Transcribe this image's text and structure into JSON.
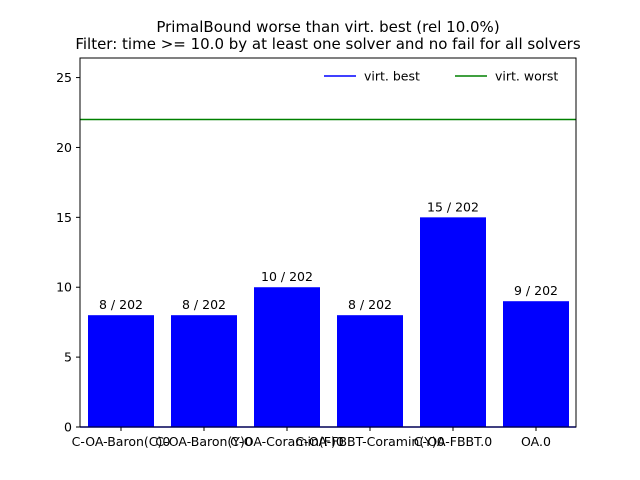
{
  "chart_data": {
    "type": "bar",
    "title": "PrimalBound worse than virt. best (rel 10.0%)",
    "subtitle": "Filter: time >= 10.0 by at least one solver and no fail for all solvers",
    "categories": [
      "C-OA-Baron(C)0",
      "C-OA-Baron(Y)0",
      "C-OA-Coramin(F)0",
      "C-OA-FBBT-Coramin(Y)0",
      "C-OA-FBBT.0",
      "OA.0"
    ],
    "values": [
      8,
      8,
      10,
      8,
      15,
      9
    ],
    "bar_labels": [
      "8 / 202",
      "8 / 202",
      "10 / 202",
      "8 / 202",
      "15 / 202",
      "9 / 202"
    ],
    "xlabel": "",
    "ylabel": "",
    "ylim": [
      0,
      26.4
    ],
    "yticks": [
      0,
      5,
      10,
      15,
      20,
      25
    ],
    "grid": false,
    "legend_position": "top-right",
    "bar_color": "#0000ff",
    "reference_lines": [
      {
        "name": "virt. best",
        "value": 0,
        "color": "#0000ff"
      },
      {
        "name": "virt. worst",
        "value": 22,
        "color": "#008000"
      }
    ]
  }
}
